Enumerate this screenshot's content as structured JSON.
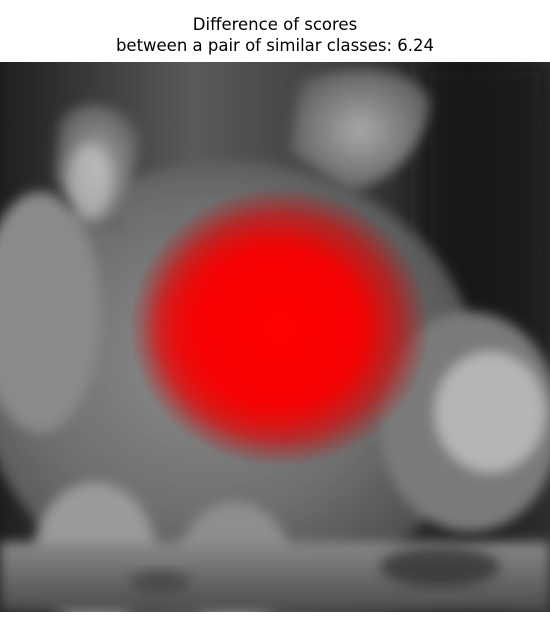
{
  "figure": {
    "title_line1": "Difference of scores",
    "title_line2": "between a pair of similar classes: 6.24",
    "image_subject": "grayscale photo of a furry animal resting on a wooden log",
    "heatmap_color": "#ff0000"
  }
}
